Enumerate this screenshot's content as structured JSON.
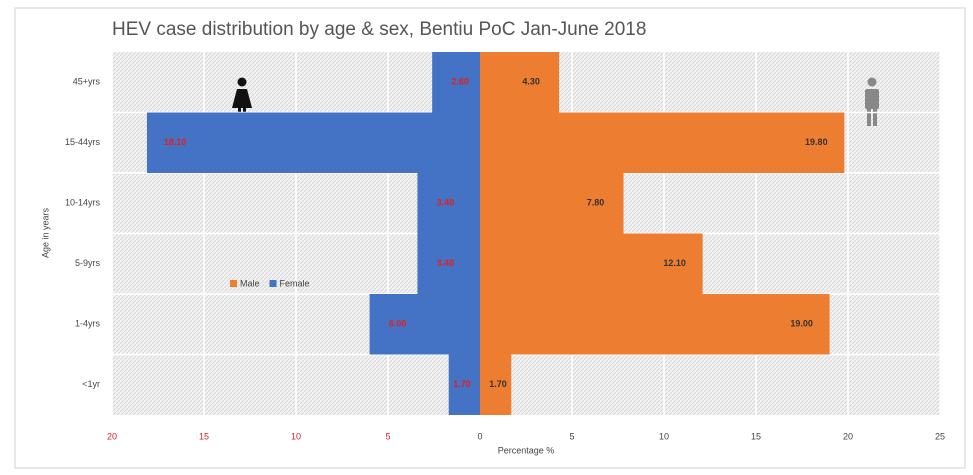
{
  "chart_data": {
    "type": "pyramid",
    "title": "HEV case distribution by age & sex, Bentiu PoC Jan-June  2018",
    "xlabel": "Percentage %",
    "ylabel": "Age in years",
    "categories": [
      "45+yrs",
      "15-44yrs",
      "10-14yrs",
      "5-9yrs",
      "1-4yrs",
      "<1yr"
    ],
    "series": [
      {
        "name": "Male",
        "color": "#ed7d31",
        "values": [
          4.3,
          19.8,
          7.8,
          12.1,
          19.0,
          1.7
        ],
        "value_labels": [
          "4.30",
          "19.80",
          "7.80",
          "12.10",
          "19.00",
          "1.70"
        ]
      },
      {
        "name": "Female",
        "color": "#4472c4",
        "values": [
          2.6,
          18.1,
          3.4,
          3.4,
          6.0,
          1.7
        ],
        "value_labels": [
          "2.60",
          "18.10",
          "3.40",
          "3.40",
          "6.00",
          "1.70"
        ]
      }
    ],
    "xlim": [
      -20,
      25
    ],
    "xticks": [
      {
        "value": -20,
        "label": "20"
      },
      {
        "value": -15,
        "label": "15"
      },
      {
        "value": -10,
        "label": "10"
      },
      {
        "value": -5,
        "label": "5"
      },
      0,
      5,
      10,
      15,
      20,
      25
    ],
    "grid": true
  }
}
